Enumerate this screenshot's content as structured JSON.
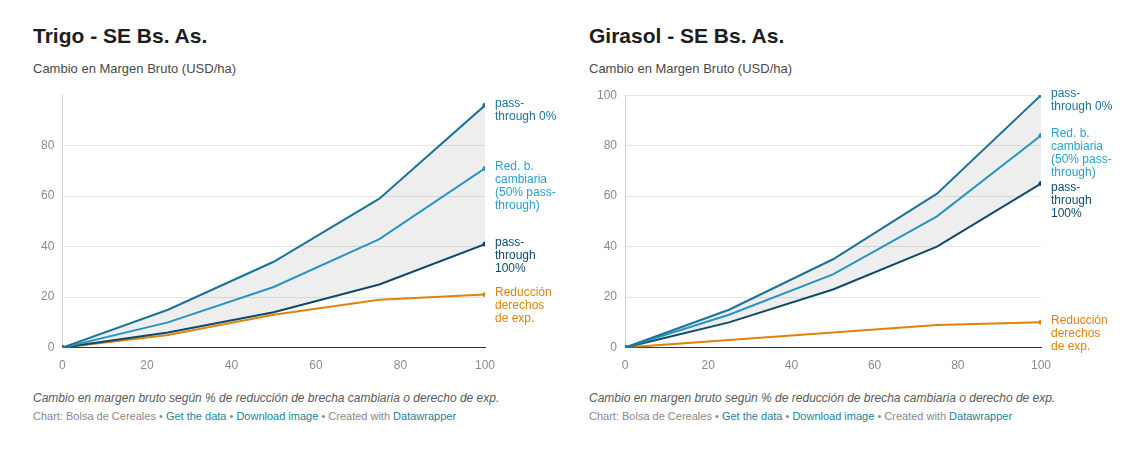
{
  "chart_data": [
    {
      "type": "line",
      "title": "Trigo - SE Bs. As.",
      "subtitle": "Cambio en Margen Bruto (USD/ha)",
      "caption": "Cambio en margen bruto según % de reducción de brecha cambiaria o derecho de exp.",
      "credit": [
        "Chart: Bolsa de Cereales",
        "Get the data",
        "Download image",
        "Created with",
        "Datawrapper"
      ],
      "separator": "•",
      "x": [
        0,
        25,
        50,
        75,
        100
      ],
      "xlim": [
        0,
        100
      ],
      "xticks": [
        0,
        20,
        40,
        60,
        80,
        100
      ],
      "ylim": [
        0,
        100
      ],
      "yticks": [
        0,
        20,
        40,
        60,
        80
      ],
      "grid": true,
      "series": [
        {
          "name": "pass-through 0%",
          "color": "#1a739c",
          "values": [
            0,
            15,
            34,
            59,
            96
          ]
        },
        {
          "name": "Red. b. cambiaria (50% pass-through)",
          "color": "#2a9fd0",
          "values": [
            0,
            10,
            24,
            43,
            71
          ]
        },
        {
          "name": "pass-through 100%",
          "color": "#0f4c6e",
          "values": [
            0,
            6,
            14,
            25,
            41
          ]
        },
        {
          "name": "Reducción derechos de exp.",
          "color": "#e0820c",
          "values": [
            0,
            5,
            13,
            19,
            21
          ]
        }
      ]
    },
    {
      "type": "line",
      "title": "Girasol - SE Bs. As.",
      "subtitle": "Cambio en Margen Bruto (USD/ha)",
      "caption": "Cambio en margen bruto según % de reducción de brecha cambiaria o derecho de exp.",
      "credit": [
        "Chart: Bolsa de Cereales",
        "Get the data",
        "Download image",
        "Created with",
        "Datawrapper"
      ],
      "separator": "•",
      "x": [
        0,
        25,
        50,
        75,
        100
      ],
      "xlim": [
        0,
        100
      ],
      "xticks": [
        0,
        20,
        40,
        60,
        80,
        100
      ],
      "ylim": [
        0,
        100
      ],
      "yticks": [
        0,
        20,
        40,
        60,
        80,
        100
      ],
      "grid": true,
      "series": [
        {
          "name": "pass-through 0%",
          "color": "#1a739c",
          "values": [
            0,
            15,
            35,
            61,
            100
          ]
        },
        {
          "name": "Red. b. cambiaria (50% pass-through)",
          "color": "#2a9fd0",
          "values": [
            0,
            13,
            29,
            52,
            84
          ]
        },
        {
          "name": "pass-through 100%",
          "color": "#0f4c6e",
          "values": [
            0,
            10,
            23,
            40,
            65
          ]
        },
        {
          "name": "Reducción derechos de exp.",
          "color": "#e0820c",
          "values": [
            0,
            3,
            6,
            9,
            10
          ]
        }
      ]
    }
  ]
}
